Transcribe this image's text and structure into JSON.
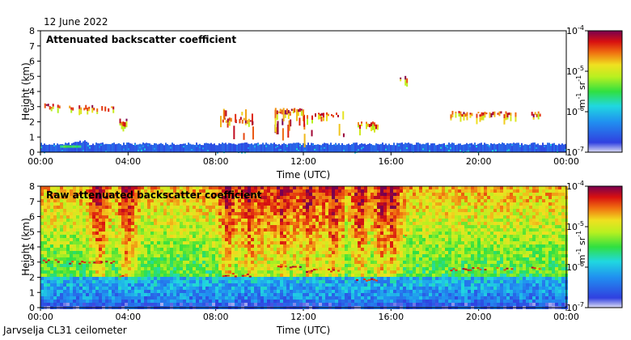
{
  "header": {
    "date": "12 June 2022"
  },
  "footer": {
    "station": "Jarvselja CL31 ceilometer"
  },
  "colors": {
    "background": "#ffffff",
    "frame": "#000000"
  },
  "chart_data": [
    {
      "type": "heatmap",
      "title": "Attenuated backscatter coefficient",
      "xlabel": "Time (UTC)",
      "ylabel": "Height (km)",
      "x_ticks": [
        "00:00",
        "04:00",
        "08:00",
        "12:00",
        "16:00",
        "20:00",
        "00:00"
      ],
      "x_range_hours": [
        0,
        24
      ],
      "y_ticks": [
        "0",
        "1",
        "2",
        "3",
        "4",
        "5",
        "6",
        "7",
        "8"
      ],
      "ylim": [
        0,
        8
      ],
      "colorbar": {
        "scale": "log",
        "ticks": [
          "10^-7",
          "10^-6",
          "10^-5",
          "10^-4"
        ],
        "tick_labels": [
          {
            "base": "10",
            "exp": "-7"
          },
          {
            "base": "10",
            "exp": "-6"
          },
          {
            "base": "10",
            "exp": "-5"
          },
          {
            "base": "10",
            "exp": "-4"
          }
        ],
        "unit": {
          "m": "m",
          "m_exp": "-1",
          "sr": "sr",
          "sr_exp": "-1"
        }
      },
      "features": {
        "surface_layer_top_km": 0.55,
        "cloud_layers": [
          {
            "start_h": 0.1,
            "end_h": 0.9,
            "height_km": 3.1
          },
          {
            "start_h": 1.3,
            "end_h": 3.3,
            "height_km": 3.0
          },
          {
            "start_h": 3.6,
            "end_h": 3.9,
            "height_km": 2.1
          },
          {
            "start_h": 8.3,
            "end_h": 9.6,
            "height_km": 2.2
          },
          {
            "start_h": 10.7,
            "end_h": 12.0,
            "height_km": 2.8
          },
          {
            "start_h": 12.0,
            "end_h": 13.6,
            "height_km": 2.5
          },
          {
            "start_h": 14.4,
            "end_h": 15.4,
            "height_km": 1.9
          },
          {
            "start_h": 16.4,
            "end_h": 16.7,
            "height_km": 4.9
          },
          {
            "start_h": 18.7,
            "end_h": 21.7,
            "height_km": 2.6
          },
          {
            "start_h": 22.4,
            "end_h": 22.8,
            "height_km": 2.6
          }
        ]
      }
    },
    {
      "type": "heatmap",
      "title": "Raw attenuated backscatter coefficient",
      "xlabel": "Time (UTC)",
      "ylabel": "Height (km)",
      "x_ticks": [
        "00:00",
        "04:00",
        "08:00",
        "12:00",
        "16:00",
        "20:00",
        "00:00"
      ],
      "x_range_hours": [
        0,
        24
      ],
      "y_ticks": [
        "0",
        "1",
        "2",
        "3",
        "4",
        "5",
        "6",
        "7",
        "8"
      ],
      "ylim": [
        0,
        8
      ],
      "colorbar": {
        "scale": "log",
        "ticks": [
          "10^-7",
          "10^-6",
          "10^-5",
          "10^-4"
        ],
        "tick_labels": [
          {
            "base": "10",
            "exp": "-7"
          },
          {
            "base": "10",
            "exp": "-6"
          },
          {
            "base": "10",
            "exp": "-5"
          },
          {
            "base": "10",
            "exp": "-4"
          }
        ],
        "unit": {
          "m": "m",
          "m_exp": "-1",
          "sr": "sr",
          "sr_exp": "-1"
        }
      },
      "features": {
        "noisy_background": true,
        "noisy_columns_h": [
          2.6,
          3.9,
          8.5,
          9.5,
          11.0,
          12.2,
          13.3,
          14.5,
          15.5,
          16.0
        ]
      }
    }
  ]
}
